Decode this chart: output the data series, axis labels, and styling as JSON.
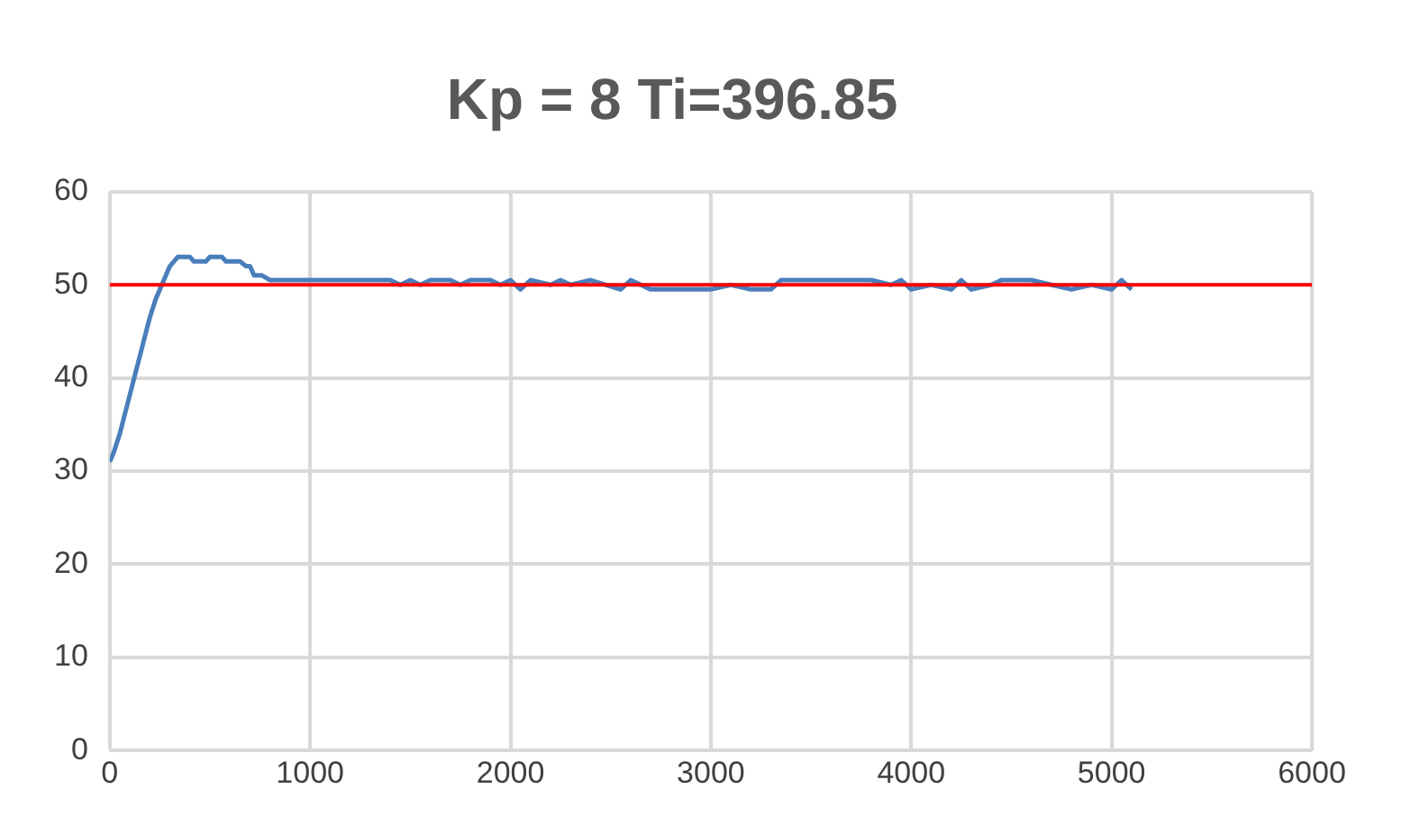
{
  "chart_data": {
    "type": "line",
    "title": "Kp = 8 Ti=396.85",
    "series": [
      {
        "color": "#4a7ebb",
        "x": [
          0,
          20,
          50,
          80,
          110,
          140,
          170,
          200,
          230,
          260,
          280,
          300,
          320,
          340,
          400,
          420,
          480,
          500,
          560,
          580,
          650,
          680,
          700,
          720,
          760,
          800,
          900,
          1000,
          1100,
          1200,
          1300,
          1400,
          1450,
          1500,
          1550,
          1600,
          1700,
          1750,
          1800,
          1900,
          1950,
          2000,
          2050,
          2100,
          2200,
          2250,
          2300,
          2400,
          2550,
          2600,
          2700,
          2800,
          2900,
          3000,
          3100,
          3200,
          3300,
          3350,
          3400,
          3500,
          3600,
          3700,
          3800,
          3900,
          3950,
          4000,
          4100,
          4200,
          4250,
          4300,
          4400,
          4450,
          4500,
          4600,
          4700,
          4800,
          4900,
          5000,
          5050,
          5100
        ],
        "values": [
          31,
          32,
          34,
          36.5,
          39,
          41.5,
          44,
          46.5,
          48.5,
          50,
          51,
          52,
          52.5,
          53,
          53,
          52.5,
          52.5,
          53,
          53,
          52.5,
          52.5,
          52,
          52,
          51,
          51,
          50.5,
          50.5,
          50.5,
          50.5,
          50.5,
          50.5,
          50.5,
          50,
          50.5,
          50,
          50.5,
          50.5,
          50,
          50.5,
          50.5,
          50,
          50.5,
          49.5,
          50.5,
          50,
          50.5,
          50,
          50.5,
          49.5,
          50.5,
          49.5,
          49.5,
          49.5,
          49.5,
          50,
          49.5,
          49.5,
          50.5,
          50.5,
          50.5,
          50.5,
          50.5,
          50.5,
          50,
          50.5,
          49.5,
          50,
          49.5,
          50.5,
          49.5,
          50,
          50.5,
          50.5,
          50.5,
          50,
          49.5,
          50,
          49.5,
          50.5,
          49.5
        ]
      }
    ],
    "xlim": [
      0,
      6000
    ],
    "xticks": [
      0,
      1000,
      2000,
      3000,
      4000,
      5000,
      6000
    ],
    "ylim": [
      0,
      60
    ],
    "yticks": [
      0,
      10,
      20,
      30,
      40,
      50,
      60
    ],
    "grid": true,
    "marker": "none",
    "line_style": "solid",
    "ref_lines": [
      {
        "axis": "y",
        "value": 50,
        "color": "#ff0000"
      }
    ]
  }
}
